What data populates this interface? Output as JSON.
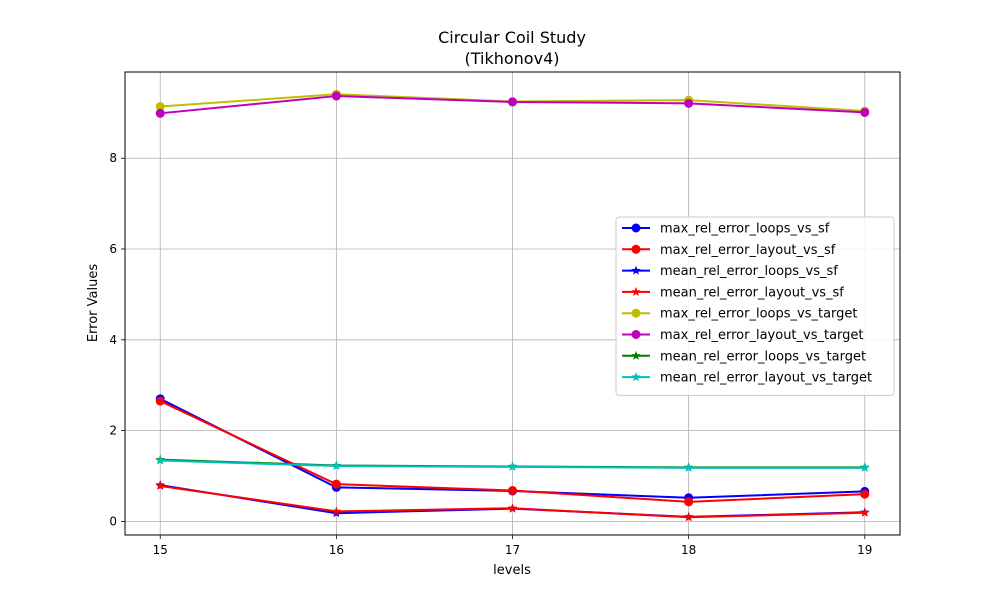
{
  "chart_data": {
    "type": "line",
    "title": "Circular Coil Study",
    "subtitle": "(Tikhonov4)",
    "xlabel": "levels",
    "ylabel": "Error Values",
    "x": [
      15,
      16,
      17,
      18,
      19
    ],
    "xlim": [
      14.8,
      19.2
    ],
    "ylim": [
      -0.3,
      9.9
    ],
    "x_ticks": [
      15,
      16,
      17,
      18,
      19
    ],
    "y_ticks": [
      0,
      2,
      4,
      6,
      8
    ],
    "grid": true,
    "legend_position": "center-right",
    "series": [
      {
        "name": "max_rel_error_loops_vs_sf",
        "color": "#0000ff",
        "marker": "circle",
        "values": [
          2.7,
          0.75,
          0.67,
          0.52,
          0.66
        ]
      },
      {
        "name": "max_rel_error_layout_vs_sf",
        "color": "#ff0000",
        "marker": "circle",
        "values": [
          2.65,
          0.82,
          0.68,
          0.43,
          0.6
        ]
      },
      {
        "name": "mean_rel_error_loops_vs_sf",
        "color": "#0000ff",
        "marker": "star",
        "values": [
          0.8,
          0.18,
          0.28,
          0.1,
          0.2
        ]
      },
      {
        "name": "mean_rel_error_layout_vs_sf",
        "color": "#ff0000",
        "marker": "star",
        "values": [
          0.78,
          0.22,
          0.29,
          0.09,
          0.19
        ]
      },
      {
        "name": "max_rel_error_loops_vs_target",
        "color": "#bfbf00",
        "marker": "circle",
        "values": [
          9.14,
          9.41,
          9.25,
          9.28,
          9.04
        ]
      },
      {
        "name": "max_rel_error_layout_vs_target",
        "color": "#bf00bf",
        "marker": "circle",
        "values": [
          8.99,
          9.37,
          9.24,
          9.21,
          9.01
        ]
      },
      {
        "name": "mean_rel_error_loops_vs_target",
        "color": "#008000",
        "marker": "star",
        "values": [
          1.36,
          1.23,
          1.21,
          1.19,
          1.19
        ]
      },
      {
        "name": "mean_rel_error_layout_vs_target",
        "color": "#00bfbf",
        "marker": "star",
        "values": [
          1.34,
          1.22,
          1.2,
          1.18,
          1.18
        ]
      }
    ]
  }
}
